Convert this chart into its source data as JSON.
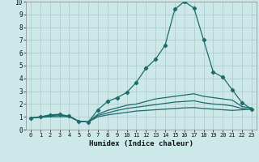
{
  "xlabel": "Humidex (Indice chaleur)",
  "xlim": [
    -0.5,
    23.5
  ],
  "ylim": [
    0,
    10
  ],
  "xticks": [
    0,
    1,
    2,
    3,
    4,
    5,
    6,
    7,
    8,
    9,
    10,
    11,
    12,
    13,
    14,
    15,
    16,
    17,
    18,
    19,
    20,
    21,
    22,
    23
  ],
  "yticks": [
    0,
    1,
    2,
    3,
    4,
    5,
    6,
    7,
    8,
    9,
    10
  ],
  "bg_color": "#cce8e8",
  "line_color": "#1e6b6b",
  "grid_color": "#b0cccc",
  "lines": [
    {
      "x": [
        0,
        1,
        2,
        3,
        4,
        5,
        6,
        7,
        8,
        9,
        10,
        11,
        12,
        13,
        14,
        15,
        16,
        17,
        18,
        19,
        20,
        21,
        22,
        23
      ],
      "y": [
        0.9,
        1.0,
        1.15,
        1.2,
        1.05,
        0.65,
        0.6,
        1.55,
        2.2,
        2.5,
        2.9,
        3.7,
        4.8,
        5.5,
        6.6,
        9.4,
        10.0,
        9.5,
        7.0,
        4.5,
        4.1,
        3.1,
        2.1,
        1.6
      ],
      "marker": true
    },
    {
      "x": [
        0,
        1,
        2,
        3,
        4,
        5,
        6,
        7,
        8,
        9,
        10,
        11,
        12,
        13,
        14,
        15,
        16,
        17,
        18,
        19,
        20,
        21,
        22,
        23
      ],
      "y": [
        0.9,
        1.0,
        1.1,
        1.15,
        1.05,
        0.65,
        0.6,
        1.2,
        1.5,
        1.7,
        1.9,
        2.0,
        2.2,
        2.4,
        2.5,
        2.6,
        2.7,
        2.8,
        2.6,
        2.5,
        2.4,
        2.3,
        1.8,
        1.7
      ],
      "marker": false
    },
    {
      "x": [
        0,
        1,
        2,
        3,
        4,
        5,
        6,
        7,
        8,
        9,
        10,
        11,
        12,
        13,
        14,
        15,
        16,
        17,
        18,
        19,
        20,
        21,
        22,
        23
      ],
      "y": [
        0.9,
        1.0,
        1.05,
        1.1,
        1.05,
        0.65,
        0.6,
        1.1,
        1.3,
        1.5,
        1.65,
        1.75,
        1.85,
        1.95,
        2.05,
        2.15,
        2.2,
        2.25,
        2.1,
        2.0,
        1.95,
        1.85,
        1.65,
        1.6
      ],
      "marker": false
    },
    {
      "x": [
        0,
        1,
        2,
        3,
        4,
        5,
        6,
        7,
        8,
        9,
        10,
        11,
        12,
        13,
        14,
        15,
        16,
        17,
        18,
        19,
        20,
        21,
        22,
        23
      ],
      "y": [
        0.9,
        0.95,
        1.0,
        1.0,
        1.0,
        0.65,
        0.6,
        1.0,
        1.15,
        1.25,
        1.35,
        1.45,
        1.5,
        1.55,
        1.6,
        1.65,
        1.7,
        1.72,
        1.65,
        1.6,
        1.55,
        1.5,
        1.55,
        1.6
      ],
      "marker": false
    }
  ]
}
